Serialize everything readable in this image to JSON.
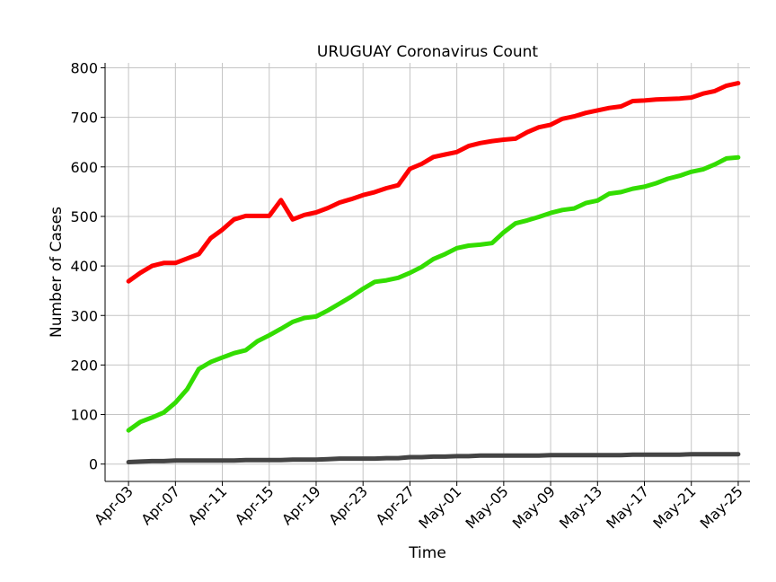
{
  "chart_data": {
    "type": "line",
    "title": "URUGUAY Coronavirus Count",
    "xlabel": "Time",
    "ylabel": "Number of Cases",
    "ylim": [
      -35,
      810
    ],
    "xlim": [
      "2020-04-01",
      "2020-05-26"
    ],
    "grid": true,
    "legend": "none",
    "yticks": [
      0,
      100,
      200,
      300,
      400,
      500,
      600,
      700,
      800
    ],
    "xticks": [
      {
        "date": "2020-04-03",
        "label": "Apr-03"
      },
      {
        "date": "2020-04-07",
        "label": "Apr-07"
      },
      {
        "date": "2020-04-11",
        "label": "Apr-11"
      },
      {
        "date": "2020-04-15",
        "label": "Apr-15"
      },
      {
        "date": "2020-04-19",
        "label": "Apr-19"
      },
      {
        "date": "2020-04-23",
        "label": "Apr-23"
      },
      {
        "date": "2020-04-27",
        "label": "Apr-27"
      },
      {
        "date": "2020-05-01",
        "label": "May-01"
      },
      {
        "date": "2020-05-05",
        "label": "May-05"
      },
      {
        "date": "2020-05-09",
        "label": "May-09"
      },
      {
        "date": "2020-05-13",
        "label": "May-13"
      },
      {
        "date": "2020-05-17",
        "label": "May-17"
      },
      {
        "date": "2020-05-21",
        "label": "May-21"
      },
      {
        "date": "2020-05-25",
        "label": "May-25"
      }
    ],
    "x": [
      "2020-04-03",
      "2020-04-04",
      "2020-04-05",
      "2020-04-06",
      "2020-04-07",
      "2020-04-08",
      "2020-04-09",
      "2020-04-10",
      "2020-04-11",
      "2020-04-12",
      "2020-04-13",
      "2020-04-14",
      "2020-04-15",
      "2020-04-16",
      "2020-04-17",
      "2020-04-18",
      "2020-04-19",
      "2020-04-20",
      "2020-04-21",
      "2020-04-22",
      "2020-04-23",
      "2020-04-24",
      "2020-04-25",
      "2020-04-26",
      "2020-04-27",
      "2020-04-28",
      "2020-04-29",
      "2020-04-30",
      "2020-05-01",
      "2020-05-02",
      "2020-05-03",
      "2020-05-04",
      "2020-05-05",
      "2020-05-06",
      "2020-05-07",
      "2020-05-08",
      "2020-05-09",
      "2020-05-10",
      "2020-05-11",
      "2020-05-12",
      "2020-05-13",
      "2020-05-14",
      "2020-05-15",
      "2020-05-16",
      "2020-05-17",
      "2020-05-18",
      "2020-05-19",
      "2020-05-20",
      "2020-05-21",
      "2020-05-22",
      "2020-05-23",
      "2020-05-24",
      "2020-05-25"
    ],
    "series": [
      {
        "color": "#ff0000",
        "values": [
          369,
          386,
          400,
          406,
          406,
          415,
          424,
          456,
          473,
          494,
          501,
          501,
          501,
          533,
          494,
          503,
          508,
          517,
          528,
          535,
          543,
          549,
          557,
          563,
          596,
          606,
          620,
          625,
          630,
          642,
          648,
          652,
          655,
          657,
          670,
          680,
          685,
          697,
          702,
          709,
          714,
          719,
          722,
          733,
          734,
          736,
          737,
          738,
          740,
          748,
          753,
          764,
          769
        ]
      },
      {
        "color": "#33dd00",
        "values": [
          68,
          85,
          94,
          104,
          124,
          151,
          192,
          206,
          215,
          224,
          230,
          248,
          260,
          273,
          287,
          295,
          298,
          310,
          324,
          338,
          354,
          368,
          371,
          376,
          386,
          398,
          414,
          424,
          436,
          441,
          443,
          446,
          468,
          486,
          492,
          499,
          507,
          513,
          516,
          527,
          532,
          546,
          549,
          556,
          560,
          567,
          576,
          582,
          590,
          595,
          605,
          617,
          619
        ]
      },
      {
        "color": "#444444",
        "values": [
          4,
          5,
          6,
          6,
          7,
          7,
          7,
          7,
          7,
          7,
          8,
          8,
          8,
          8,
          9,
          9,
          9,
          10,
          11,
          11,
          11,
          11,
          12,
          12,
          14,
          14,
          15,
          15,
          16,
          16,
          17,
          17,
          17,
          17,
          17,
          17,
          18,
          18,
          18,
          18,
          18,
          18,
          18,
          19,
          19,
          19,
          19,
          19,
          20,
          20,
          20,
          20,
          20
        ]
      }
    ]
  }
}
